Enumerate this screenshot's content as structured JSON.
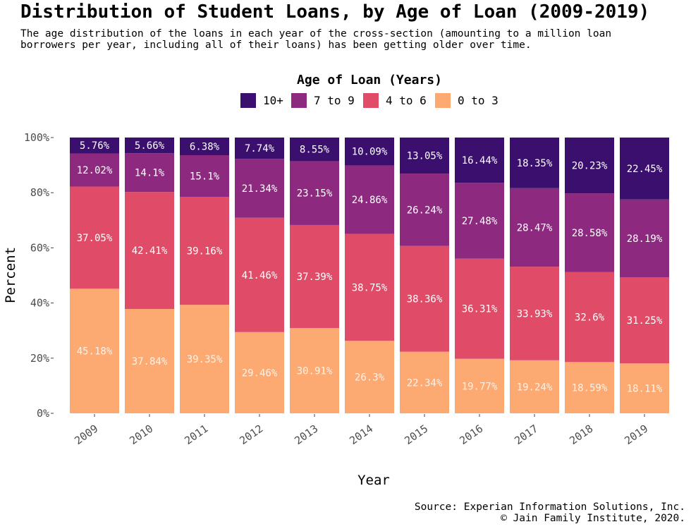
{
  "title": "Distribution of Student Loans, by Age of Loan (2009-2019)",
  "subtitle": "The age distribution of the loans in each year of the cross-section (amounting to a million loan\nborrowers per year, including all of their loans) has been getting older over time.",
  "caption": "Source: Experian Information Solutions, Inc.\n© Jain Family Institute, 2020.",
  "chart_data": {
    "type": "bar",
    "stacked": true,
    "categories": [
      "2009",
      "2010",
      "2011",
      "2012",
      "2013",
      "2014",
      "2015",
      "2016",
      "2017",
      "2018",
      "2019"
    ],
    "xlabel": "Year",
    "ylabel": "Percent",
    "ylim": [
      0,
      100
    ],
    "yticks": [
      "0%",
      "20%",
      "40%",
      "60%",
      "80%",
      "100%"
    ],
    "legend": {
      "title": "Age of Loan (Years)",
      "position": "top"
    },
    "grid": false,
    "series": [
      {
        "name": "0 to 3",
        "color": "#fca972",
        "values": [
          45.18,
          37.84,
          39.35,
          29.46,
          30.91,
          26.3,
          22.34,
          19.77,
          19.24,
          18.59,
          18.11
        ],
        "labels": [
          "45.18%",
          "37.84%",
          "39.35%",
          "29.46%",
          "30.91%",
          "26.3%",
          "22.34%",
          "19.77%",
          "19.24%",
          "18.59%",
          "18.11%"
        ]
      },
      {
        "name": "4 to 6",
        "color": "#e04c67",
        "values": [
          37.05,
          42.41,
          39.16,
          41.46,
          37.39,
          38.75,
          38.36,
          36.31,
          33.93,
          32.6,
          31.25
        ],
        "labels": [
          "37.05%",
          "42.41%",
          "39.16%",
          "41.46%",
          "37.39%",
          "38.75%",
          "38.36%",
          "36.31%",
          "33.93%",
          "32.6%",
          "31.25%"
        ]
      },
      {
        "name": "7 to 9",
        "color": "#8d2a80",
        "values": [
          12.02,
          14.1,
          15.1,
          21.34,
          23.15,
          24.86,
          26.24,
          27.48,
          28.47,
          28.58,
          28.19
        ],
        "labels": [
          "12.02%",
          "14.1%",
          "15.1%",
          "21.34%",
          "23.15%",
          "24.86%",
          "26.24%",
          "27.48%",
          "28.47%",
          "28.58%",
          "28.19%"
        ]
      },
      {
        "name": "10+",
        "color": "#3a0f6e",
        "values": [
          5.76,
          5.66,
          6.38,
          7.74,
          8.55,
          10.09,
          13.05,
          16.44,
          18.35,
          20.23,
          22.45
        ],
        "labels": [
          "5.76%",
          "5.66%",
          "6.38%",
          "7.74%",
          "8.55%",
          "10.09%",
          "13.05%",
          "16.44%",
          "18.35%",
          "20.23%",
          "22.45%"
        ]
      }
    ],
    "legend_order": [
      "10+",
      "7 to 9",
      "4 to 6",
      "0 to 3"
    ]
  }
}
